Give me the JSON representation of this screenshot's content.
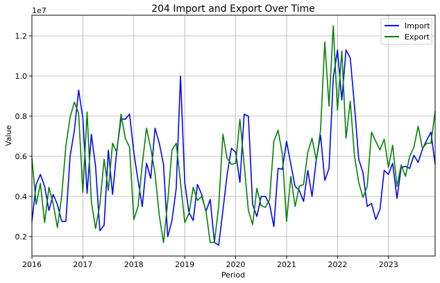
{
  "chart_data": {
    "type": "line",
    "title": "204 Import and Export Over Time",
    "xlabel": "Period",
    "ylabel": "Value",
    "y_scale_label": "1e7",
    "y_unit_multiplier": 10000000,
    "ylim": [
      0.103,
      1.303
    ],
    "xlim": [
      "2016-01",
      "2023-12"
    ],
    "x_ticks": [
      "2016",
      "2017",
      "2018",
      "2019",
      "2020",
      "2021",
      "2022",
      "2023"
    ],
    "y_ticks": [
      0.2,
      0.4,
      0.6,
      0.8,
      1.0,
      1.2
    ],
    "y_tick_labels": [
      "0.2",
      "0.4",
      "0.6",
      "0.8",
      "1.0",
      "1.2"
    ],
    "grid": true,
    "legend_position": "top-right",
    "x_start": "2016-01",
    "x_frequency": "monthly",
    "series": [
      {
        "name": "Import",
        "color": "#0000ff",
        "values": [
          0.276,
          0.46,
          0.51,
          0.45,
          0.33,
          0.41,
          0.36,
          0.276,
          0.276,
          0.6,
          0.73,
          0.93,
          0.79,
          0.415,
          0.71,
          0.55,
          0.23,
          0.256,
          0.63,
          0.41,
          0.63,
          0.785,
          0.785,
          0.81,
          0.62,
          0.48,
          0.35,
          0.565,
          0.49,
          0.74,
          0.665,
          0.56,
          0.2,
          0.28,
          0.44,
          1.0,
          0.47,
          0.32,
          0.28,
          0.46,
          0.41,
          0.325,
          0.385,
          0.17,
          0.157,
          0.33,
          0.51,
          0.64,
          0.62,
          0.47,
          0.81,
          0.8,
          0.36,
          0.3,
          0.4,
          0.4,
          0.36,
          0.25,
          0.54,
          0.535,
          0.675,
          0.56,
          0.45,
          0.43,
          0.375,
          0.53,
          0.4,
          0.585,
          0.705,
          0.48,
          0.54,
          0.99,
          1.13,
          0.88,
          1.13,
          1.09,
          0.85,
          0.585,
          0.52,
          0.35,
          0.365,
          0.285,
          0.335,
          0.53,
          0.51,
          0.565,
          0.39,
          0.545,
          0.55,
          0.54,
          0.605,
          0.57,
          0.635,
          0.68,
          0.72,
          0.56
        ]
      },
      {
        "name": "Export",
        "color": "#008000",
        "values": [
          0.59,
          0.36,
          0.465,
          0.27,
          0.445,
          0.365,
          0.245,
          0.4,
          0.65,
          0.795,
          0.87,
          0.815,
          0.42,
          0.82,
          0.375,
          0.24,
          0.36,
          0.585,
          0.43,
          0.665,
          0.62,
          0.81,
          0.69,
          0.645,
          0.285,
          0.35,
          0.56,
          0.74,
          0.64,
          0.515,
          0.305,
          0.17,
          0.375,
          0.63,
          0.665,
          0.47,
          0.27,
          0.315,
          0.445,
          0.38,
          0.4,
          0.33,
          0.17,
          0.172,
          0.35,
          0.71,
          0.59,
          0.56,
          0.565,
          0.785,
          0.56,
          0.33,
          0.26,
          0.44,
          0.355,
          0.345,
          0.385,
          0.675,
          0.73,
          0.61,
          0.275,
          0.5,
          0.35,
          0.45,
          0.46,
          0.62,
          0.69,
          0.58,
          0.73,
          1.17,
          0.85,
          1.25,
          0.83,
          1.125,
          0.69,
          0.875,
          0.6,
          0.47,
          0.395,
          0.45,
          0.72,
          0.675,
          0.632,
          0.685,
          0.545,
          0.655,
          0.45,
          0.557,
          0.5,
          0.6,
          0.645,
          0.75,
          0.64,
          0.665,
          0.665,
          0.825
        ]
      }
    ]
  }
}
